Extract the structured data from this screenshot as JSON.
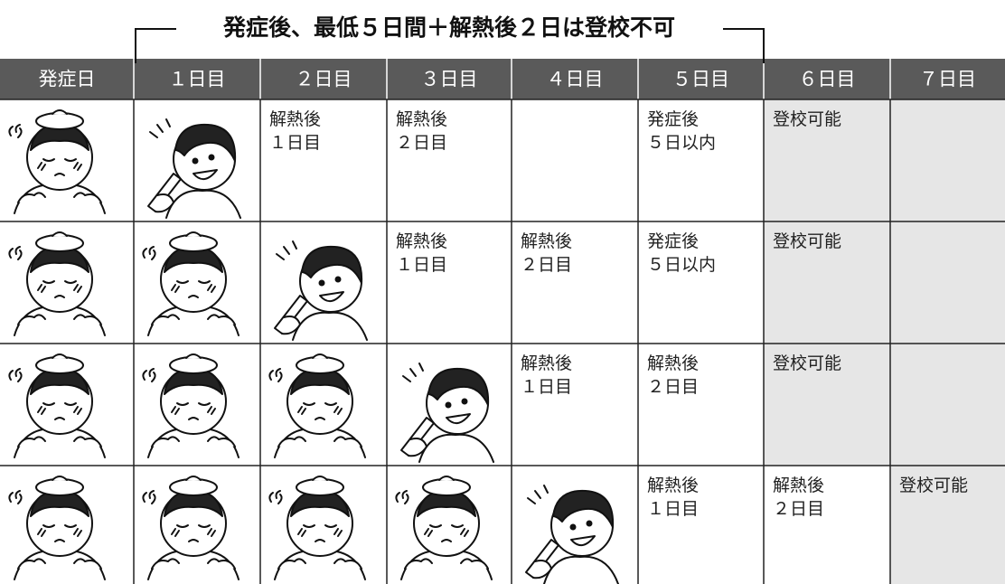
{
  "title": "発症後、最低５日間＋解熱後２日は登校不可",
  "table": {
    "header": [
      "発症日",
      "１日目",
      "２日目",
      "３日目",
      "４日目",
      "５日目",
      "６日目",
      "７日目"
    ],
    "rows": [
      [
        null,
        null,
        [
          "解熱後",
          "１日目"
        ],
        [
          "解熱後",
          "２日目"
        ],
        null,
        [
          "発症後",
          "５日以内"
        ],
        [
          "登校可能"
        ],
        null
      ],
      [
        null,
        null,
        null,
        [
          "解熱後",
          "１日目"
        ],
        [
          "解熱後",
          "２日目"
        ],
        [
          "発症後",
          "５日以内"
        ],
        [
          "登校可能"
        ],
        null
      ],
      [
        null,
        null,
        null,
        null,
        [
          "解熱後",
          "１日目"
        ],
        [
          "解熱後",
          "２日目"
        ],
        [
          "登校可能"
        ],
        null
      ],
      [
        null,
        null,
        null,
        null,
        null,
        [
          "解熱後",
          "１日目"
        ],
        [
          "解熱後",
          "２日目"
        ],
        [
          "登校可能"
        ]
      ]
    ]
  }
}
